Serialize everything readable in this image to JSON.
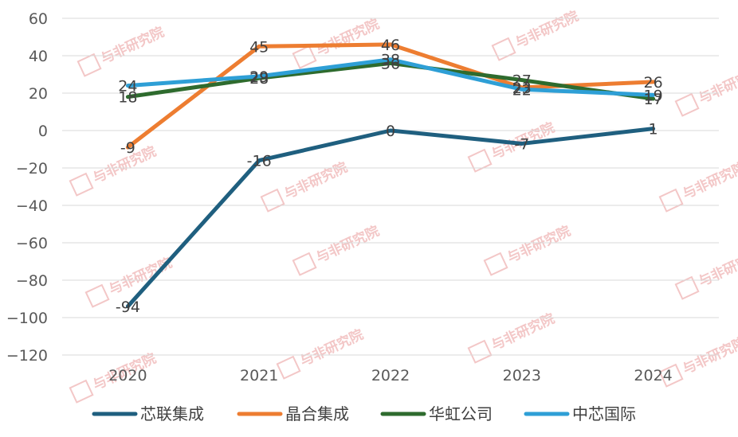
{
  "chart_data": {
    "type": "line",
    "categories": [
      "2020",
      "2021",
      "2022",
      "2023",
      "2024"
    ],
    "series": [
      {
        "name": "芯联集成",
        "color": "#1f5f7f",
        "values": [
          -94,
          -16,
          0,
          -7,
          1
        ]
      },
      {
        "name": "晶合集成",
        "color": "#ed7d31",
        "values": [
          -9,
          45,
          46,
          23,
          26
        ]
      },
      {
        "name": "华虹公司",
        "color": "#2e6b2e",
        "values": [
          18,
          28,
          36,
          27,
          17
        ]
      },
      {
        "name": "中芯国际",
        "color": "#2e9fd6",
        "values": [
          24,
          29,
          38,
          22,
          19
        ]
      }
    ],
    "value_labels": [
      [
        "-94",
        "-16",
        "0",
        "-7",
        "1"
      ],
      [
        "-9",
        "45",
        "46",
        "23",
        "26"
      ],
      [
        "18",
        "28",
        "36",
        "27",
        "17"
      ],
      [
        "24",
        "29",
        "38",
        "22",
        "19"
      ]
    ],
    "ylim": [
      -120,
      60
    ],
    "yticks": [
      60,
      40,
      20,
      0,
      -20,
      -40,
      -60,
      -80,
      -100,
      -120
    ],
    "ytick_labels": [
      "60",
      "40",
      "20",
      "0",
      "−20",
      "−40",
      "−60",
      "−80",
      "−100",
      "−120"
    ],
    "grid": true,
    "legend_position": "bottom"
  },
  "watermark": {
    "text": "与非研究院"
  }
}
